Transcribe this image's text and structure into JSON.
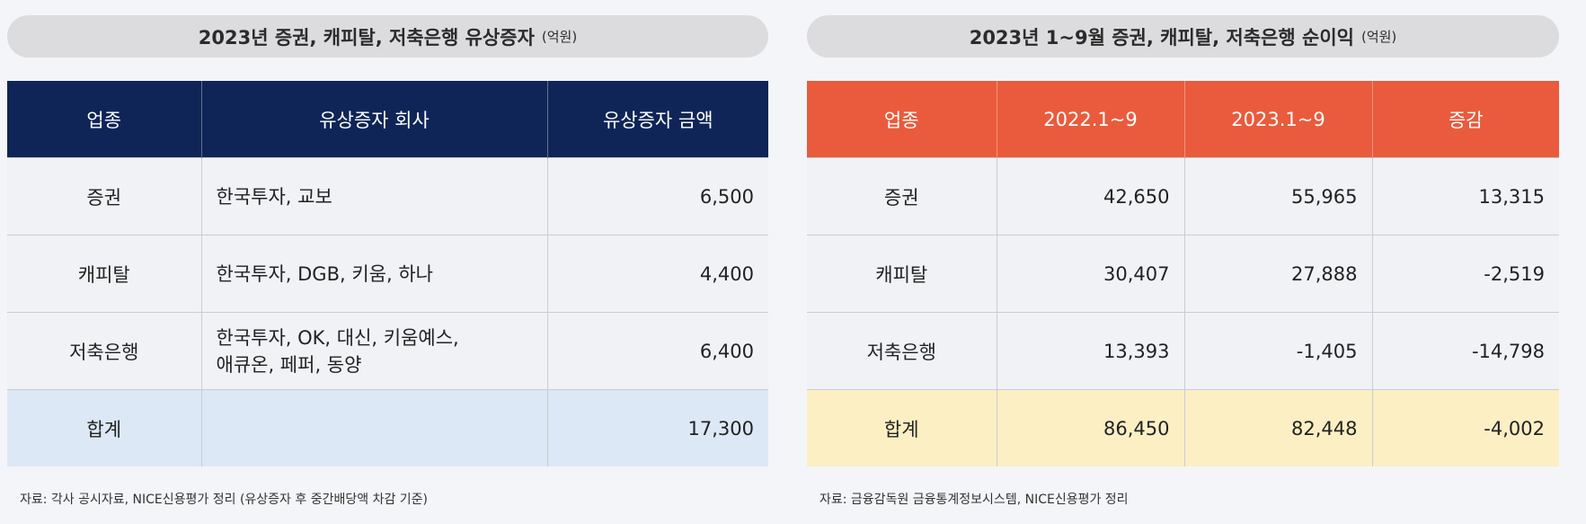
{
  "left": {
    "title": "2023년 증권, 캐피탈, 저축은행 유상증자",
    "unit": "(억원)",
    "headers": [
      "업종",
      "유상증자 회사",
      "유상증자 금액"
    ],
    "rows": [
      {
        "category": "증권",
        "companies": [
          "한국투자, 교보"
        ],
        "amount": "6,500"
      },
      {
        "category": "캐피탈",
        "companies": [
          "한국투자, DGB, 키움, 하나"
        ],
        "amount": "4,400"
      },
      {
        "category": "저축은행",
        "companies": [
          "한국투자, OK, 대신, 키움예스,",
          "애큐온, 페퍼, 동양"
        ],
        "amount": "6,400"
      }
    ],
    "total": {
      "category": "합계",
      "companies": "",
      "amount": "17,300"
    },
    "source": "자료: 각사 공시자료, NICE신용평가 정리 (유상증자 후 중간배당액 차감 기준)",
    "header_color": "#0f2557",
    "total_color": "#dce8f5"
  },
  "right": {
    "title": "2023년 1~9월 증권, 캐피탈, 저축은행 순이익",
    "unit": "(억원)",
    "headers": [
      "업종",
      "2022.1~9",
      "2023.1~9",
      "증감"
    ],
    "rows": [
      {
        "category": "증권",
        "v2022": "42,650",
        "v2023": "55,965",
        "change": "13,315"
      },
      {
        "category": "캐피탈",
        "v2022": "30,407",
        "v2023": "27,888",
        "change": "-2,519"
      },
      {
        "category": "저축은행",
        "v2022": "13,393",
        "v2023": "-1,405",
        "change": "-14,798"
      }
    ],
    "total": {
      "category": "합계",
      "v2022": "86,450",
      "v2023": "82,448",
      "change": "-4,002"
    },
    "source": "자료: 금융감독원 금융통계정보시스템, NICE신용평가 정리",
    "header_color": "#e95b3c",
    "total_color": "#fcefc4"
  }
}
